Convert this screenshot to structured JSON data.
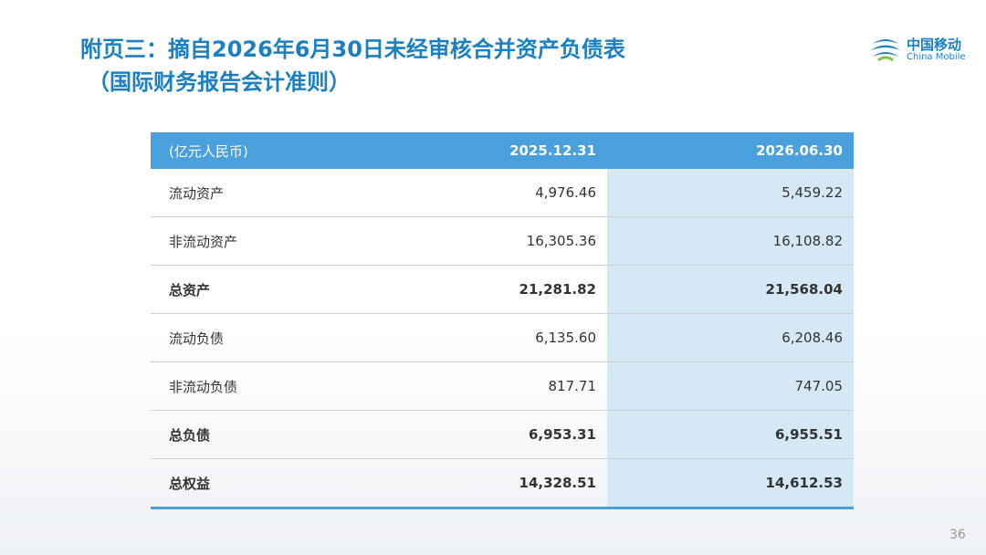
{
  "header": {
    "title_line1": "附页三：摘自2026年6月30日未经审核合并资产负债表",
    "title_line2": "（国际财务报告会计准则）"
  },
  "logo": {
    "name_cn": "中国移动",
    "name_en": "China Mobile"
  },
  "table": {
    "columns": [
      "(亿元人民币)",
      "2025.12.31",
      "2026.06.30"
    ],
    "rows": [
      {
        "cells": [
          "流动资产",
          "4,976.46",
          "5,459.22"
        ],
        "bold": false
      },
      {
        "cells": [
          "非流动资产",
          "16,305.36",
          "16,108.82"
        ],
        "bold": false
      },
      {
        "cells": [
          "总资产",
          "21,281.82",
          "21,568.04"
        ],
        "bold": true
      },
      {
        "cells": [
          "流动负债",
          "6,135.60",
          "6,208.46"
        ],
        "bold": false
      },
      {
        "cells": [
          "非流动负债",
          "817.71",
          "747.05"
        ],
        "bold": false
      },
      {
        "cells": [
          "总负债",
          "6,953.31",
          "6,955.51"
        ],
        "bold": true
      },
      {
        "cells": [
          "总权益",
          "14,328.51",
          "14,612.53"
        ],
        "bold": true
      }
    ]
  },
  "page_number": "36"
}
